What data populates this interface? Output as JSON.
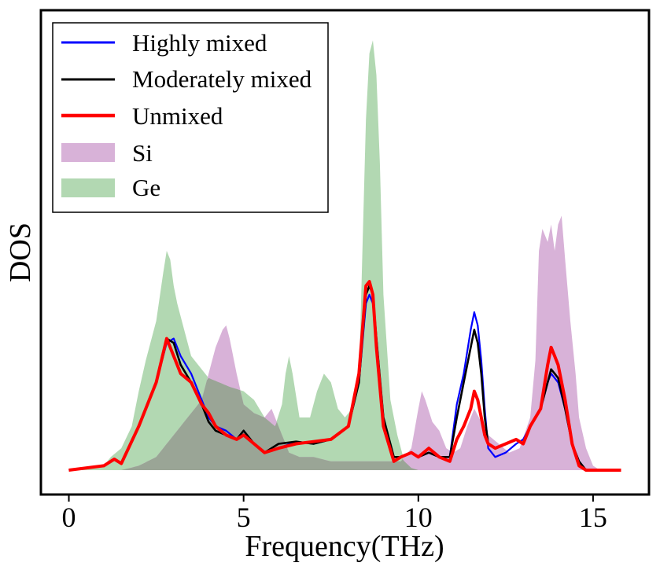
{
  "chart_data": {
    "type": "area",
    "title": "",
    "xlabel": "Frequency(THz)",
    "ylabel": "DOS",
    "xlim": [
      -0.8,
      16.6
    ],
    "ylim": [
      0,
      1.0
    ],
    "xticks": [
      0,
      5,
      10,
      15
    ],
    "yticks": [],
    "grid": false,
    "legend": {
      "placement": "top-left",
      "entries": [
        "Highly mixed",
        "Moderately mixed",
        "Unmixed",
        "Si",
        "Ge"
      ]
    },
    "colors": {
      "highly_mixed": "#0000ff",
      "moderately_mixed": "#000000",
      "unmixed": "#ff0000",
      "si": "#d8b2d8",
      "ge": "#b2d8b2",
      "overlap": "#9aa596"
    },
    "fills": [
      {
        "name": "Ge",
        "x": [
          0,
          0.5,
          1,
          1.2,
          1.5,
          1.8,
          2,
          2.2,
          2.5,
          2.7,
          2.8,
          2.9,
          3,
          3.1,
          3.3,
          3.5,
          3.8,
          4,
          4.3,
          4.6,
          5,
          5.3,
          5.6,
          5.9,
          6.1,
          6.2,
          6.3,
          6.4,
          6.6,
          6.9,
          7.1,
          7.3,
          7.5,
          7.7,
          7.9,
          8.1,
          8.3,
          8.4,
          8.5,
          8.6,
          8.7,
          8.8,
          8.9,
          9,
          9.2,
          9.4,
          9.6,
          9.8,
          10
        ],
        "y": [
          0,
          0.005,
          0.01,
          0.03,
          0.05,
          0.1,
          0.18,
          0.25,
          0.34,
          0.45,
          0.5,
          0.48,
          0.42,
          0.38,
          0.32,
          0.26,
          0.23,
          0.21,
          0.2,
          0.19,
          0.18,
          0.16,
          0.12,
          0.1,
          0.15,
          0.22,
          0.26,
          0.22,
          0.12,
          0.12,
          0.18,
          0.22,
          0.2,
          0.14,
          0.12,
          0.14,
          0.2,
          0.5,
          0.8,
          0.95,
          0.98,
          0.9,
          0.7,
          0.4,
          0.16,
          0.08,
          0.02,
          0.005,
          0
        ]
      },
      {
        "name": "Si",
        "x": [
          0,
          1,
          1.5,
          2,
          2.5,
          3,
          3.2,
          3.5,
          3.8,
          4,
          4.2,
          4.4,
          4.5,
          4.6,
          4.8,
          5,
          5.3,
          5.6,
          5.8,
          6,
          6.3,
          6.6,
          7,
          7.5,
          8,
          8.5,
          9,
          9.5,
          9.8,
          10,
          10.1,
          10.2,
          10.4,
          10.6,
          10.8,
          11,
          11.2,
          11.4,
          11.6,
          11.8,
          12,
          12.3,
          12.6,
          12.9,
          13.2,
          13.35,
          13.45,
          13.55,
          13.7,
          13.8,
          13.9,
          14,
          14.1,
          14.2,
          14.35,
          14.5,
          14.6,
          14.8,
          15,
          15.2
        ],
        "y": [
          0,
          0,
          0,
          0.01,
          0.03,
          0.08,
          0.1,
          0.13,
          0.16,
          0.22,
          0.28,
          0.32,
          0.33,
          0.3,
          0.22,
          0.15,
          0.13,
          0.12,
          0.14,
          0.1,
          0.04,
          0.03,
          0.03,
          0.02,
          0.02,
          0.02,
          0.02,
          0.02,
          0.05,
          0.14,
          0.18,
          0.16,
          0.11,
          0.09,
          0.05,
          0.04,
          0.05,
          0.1,
          0.14,
          0.11,
          0.08,
          0.06,
          0.04,
          0.05,
          0.12,
          0.25,
          0.5,
          0.55,
          0.52,
          0.56,
          0.5,
          0.56,
          0.58,
          0.48,
          0.34,
          0.22,
          0.12,
          0.05,
          0.01,
          0
        ]
      }
    ],
    "series": [
      {
        "name": "Highly mixed",
        "x": [
          0,
          1,
          1.3,
          1.5,
          2,
          2.5,
          2.8,
          3,
          3.2,
          3.5,
          3.8,
          4,
          4.2,
          4.5,
          4.8,
          5,
          5.3,
          5.6,
          6,
          6.5,
          7,
          7.5,
          8,
          8.3,
          8.5,
          8.6,
          8.7,
          8.8,
          9,
          9.3,
          9.5,
          9.8,
          10,
          10.3,
          10.6,
          10.9,
          11.1,
          11.3,
          11.5,
          11.6,
          11.7,
          11.8,
          11.9,
          12,
          12.2,
          12.5,
          12.8,
          13,
          13.2,
          13.5,
          13.7,
          13.8,
          13.9,
          14,
          14.2,
          14.4,
          14.6,
          14.8,
          15
        ],
        "y": [
          0,
          0.01,
          0.025,
          0.015,
          0.1,
          0.2,
          0.29,
          0.3,
          0.26,
          0.22,
          0.16,
          0.12,
          0.1,
          0.09,
          0.07,
          0.09,
          0.06,
          0.04,
          0.05,
          0.065,
          0.06,
          0.07,
          0.1,
          0.2,
          0.38,
          0.4,
          0.38,
          0.3,
          0.12,
          0.02,
          0.03,
          0.04,
          0.03,
          0.04,
          0.03,
          0.03,
          0.15,
          0.22,
          0.32,
          0.36,
          0.33,
          0.25,
          0.14,
          0.05,
          0.03,
          0.04,
          0.06,
          0.07,
          0.1,
          0.14,
          0.2,
          0.22,
          0.21,
          0.2,
          0.14,
          0.06,
          0.01,
          0,
          0
        ]
      },
      {
        "name": "Moderately mixed",
        "x": [
          0,
          1,
          1.3,
          1.5,
          2,
          2.5,
          2.8,
          3,
          3.2,
          3.5,
          3.8,
          4,
          4.2,
          4.5,
          4.8,
          5,
          5.3,
          5.6,
          6,
          6.5,
          7,
          7.5,
          8,
          8.3,
          8.5,
          8.6,
          8.7,
          8.8,
          9,
          9.3,
          9.5,
          9.8,
          10,
          10.3,
          10.6,
          10.9,
          11.1,
          11.3,
          11.5,
          11.6,
          11.7,
          11.8,
          11.9,
          12,
          12.2,
          12.5,
          12.8,
          13,
          13.2,
          13.5,
          13.7,
          13.8,
          13.9,
          14,
          14.2,
          14.4,
          14.6,
          14.8,
          15
        ],
        "y": [
          0,
          0.01,
          0.025,
          0.015,
          0.1,
          0.2,
          0.3,
          0.29,
          0.24,
          0.2,
          0.15,
          0.11,
          0.09,
          0.08,
          0.07,
          0.09,
          0.06,
          0.04,
          0.06,
          0.065,
          0.06,
          0.07,
          0.1,
          0.2,
          0.4,
          0.42,
          0.4,
          0.3,
          0.12,
          0.03,
          0.03,
          0.04,
          0.03,
          0.04,
          0.03,
          0.03,
          0.12,
          0.2,
          0.28,
          0.32,
          0.29,
          0.22,
          0.12,
          0.06,
          0.05,
          0.06,
          0.07,
          0.06,
          0.1,
          0.14,
          0.2,
          0.23,
          0.22,
          0.21,
          0.14,
          0.06,
          0.02,
          0,
          0
        ]
      },
      {
        "name": "Unmixed",
        "x": [
          0,
          1,
          1.3,
          1.5,
          2,
          2.5,
          2.8,
          3,
          3.2,
          3.5,
          3.8,
          4,
          4.2,
          4.5,
          4.8,
          5,
          5.3,
          5.6,
          6,
          6.5,
          7,
          7.5,
          8,
          8.3,
          8.5,
          8.6,
          8.7,
          8.8,
          9,
          9.3,
          9.5,
          9.8,
          10,
          10.3,
          10.6,
          10.9,
          11.1,
          11.3,
          11.5,
          11.6,
          11.7,
          11.8,
          11.9,
          12,
          12.2,
          12.5,
          12.8,
          13,
          13.2,
          13.5,
          13.7,
          13.8,
          13.9,
          14,
          14.2,
          14.4,
          14.6,
          14.8,
          15,
          15.8
        ],
        "y": [
          0,
          0.01,
          0.025,
          0.015,
          0.1,
          0.2,
          0.3,
          0.26,
          0.22,
          0.2,
          0.15,
          0.13,
          0.1,
          0.08,
          0.07,
          0.08,
          0.06,
          0.04,
          0.05,
          0.06,
          0.065,
          0.07,
          0.1,
          0.22,
          0.42,
          0.43,
          0.4,
          0.28,
          0.1,
          0.02,
          0.03,
          0.04,
          0.03,
          0.05,
          0.03,
          0.02,
          0.07,
          0.1,
          0.14,
          0.18,
          0.16,
          0.12,
          0.08,
          0.06,
          0.05,
          0.06,
          0.07,
          0.06,
          0.1,
          0.14,
          0.24,
          0.28,
          0.26,
          0.24,
          0.16,
          0.06,
          0.01,
          0,
          0,
          0
        ]
      }
    ]
  }
}
